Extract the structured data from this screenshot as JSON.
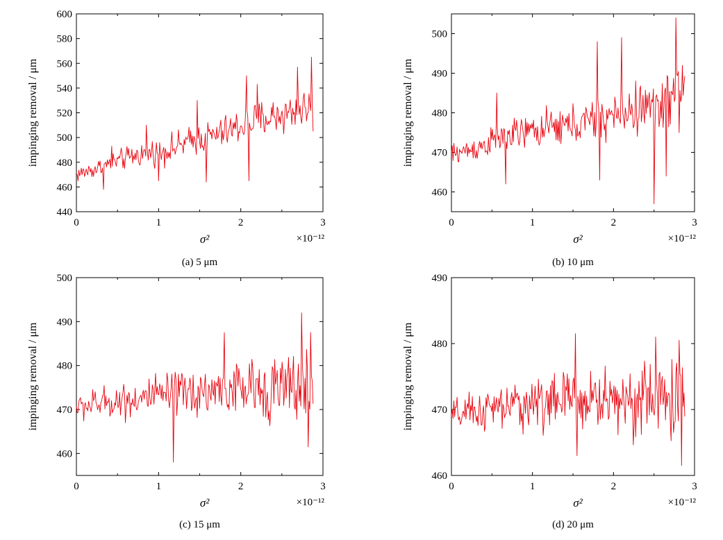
{
  "chart_data": [
    {
      "type": "line",
      "caption": "(a)  5 μm",
      "xlabel": "σ²",
      "ylabel": "impinging removal / μm",
      "x_exponent": "×10⁻¹²",
      "xlim": [
        0,
        3
      ],
      "ylim": [
        440,
        600
      ],
      "xticks": [
        0,
        1,
        2,
        3
      ],
      "yticks": [
        440,
        460,
        480,
        500,
        520,
        540,
        560,
        580,
        600
      ],
      "color": "#e8000b",
      "x": [
        0,
        0.15,
        0.3,
        0.45,
        0.6,
        0.75,
        0.9,
        1.05,
        1.2,
        1.35,
        1.5,
        1.65,
        1.8,
        1.95,
        2.1,
        2.25,
        2.4,
        2.55,
        2.7,
        2.88
      ],
      "y": [
        470,
        473,
        476,
        480,
        483,
        486,
        488,
        489,
        492,
        496,
        499,
        501,
        504,
        508,
        512,
        515,
        517,
        519,
        522,
        525
      ],
      "noise_amplitude": 12,
      "spikes": [
        [
          0.33,
          458
        ],
        [
          0.43,
          493
        ],
        [
          0.85,
          510
        ],
        [
          1.0,
          465
        ],
        [
          1.47,
          530
        ],
        [
          1.58,
          464
        ],
        [
          2.07,
          550
        ],
        [
          2.1,
          465
        ],
        [
          2.2,
          543
        ],
        [
          2.69,
          557
        ],
        [
          2.86,
          565
        ],
        [
          2.88,
          505
        ]
      ]
    },
    {
      "type": "line",
      "caption": "(b)  10 μm",
      "xlabel": "σ²",
      "ylabel": "impinging removal / μm",
      "x_exponent": "×10⁻¹²",
      "xlim": [
        0,
        3
      ],
      "ylim": [
        455,
        505
      ],
      "xticks": [
        0,
        1,
        2,
        3
      ],
      "yticks": [
        460,
        470,
        480,
        490,
        500
      ],
      "color": "#e8000b",
      "x": [
        0,
        0.3,
        0.6,
        0.9,
        1.2,
        1.5,
        1.8,
        2.1,
        2.4,
        2.7,
        2.88
      ],
      "y": [
        469.5,
        471,
        473.5,
        475,
        476,
        477,
        478,
        480,
        481.5,
        484,
        486
      ],
      "noise_amplitude": 5,
      "spikes": [
        [
          0.56,
          485
        ],
        [
          0.67,
          462
        ],
        [
          1.8,
          498
        ],
        [
          1.83,
          463
        ],
        [
          2.1,
          499
        ],
        [
          2.5,
          457
        ],
        [
          2.65,
          464
        ],
        [
          2.77,
          504
        ],
        [
          2.81,
          475
        ],
        [
          2.85,
          492
        ]
      ]
    },
    {
      "type": "line",
      "caption": "(c)  15 μm",
      "xlabel": "σ²",
      "ylabel": "impinging removal / μm",
      "x_exponent": "×10⁻¹²",
      "xlim": [
        0,
        3
      ],
      "ylim": [
        455,
        500
      ],
      "xticks": [
        0,
        1,
        2,
        3
      ],
      "yticks": [
        460,
        470,
        480,
        490,
        500
      ],
      "color": "#e8000b",
      "x": [
        0,
        0.5,
        1,
        1.5,
        2,
        2.5,
        2.88
      ],
      "y": [
        470.5,
        472,
        473,
        474,
        474.5,
        475,
        475
      ],
      "noise_amplitude": 5.5,
      "spikes": [
        [
          1.18,
          458
        ],
        [
          1.8,
          487.5
        ],
        [
          2.74,
          492
        ],
        [
          2.82,
          461.5
        ],
        [
          2.85,
          487.5
        ]
      ]
    },
    {
      "type": "line",
      "caption": "(d)  20 μm",
      "xlabel": "σ²",
      "ylabel": "impinging removal / μm",
      "x_exponent": "×10⁻¹²",
      "xlim": [
        0,
        3
      ],
      "ylim": [
        460,
        490
      ],
      "xticks": [
        0,
        1,
        2,
        3
      ],
      "yticks": [
        460,
        470,
        480,
        490
      ],
      "color": "#e8000b",
      "x": [
        0,
        0.5,
        1,
        1.5,
        2,
        2.5,
        2.88
      ],
      "y": [
        469,
        470,
        471,
        471.5,
        471.5,
        471.5,
        471.5
      ],
      "noise_amplitude": 4.5,
      "spikes": [
        [
          1.53,
          481.5
        ],
        [
          1.55,
          463
        ],
        [
          2.52,
          481
        ],
        [
          2.81,
          480.5
        ],
        [
          2.84,
          461.5
        ]
      ]
    }
  ]
}
